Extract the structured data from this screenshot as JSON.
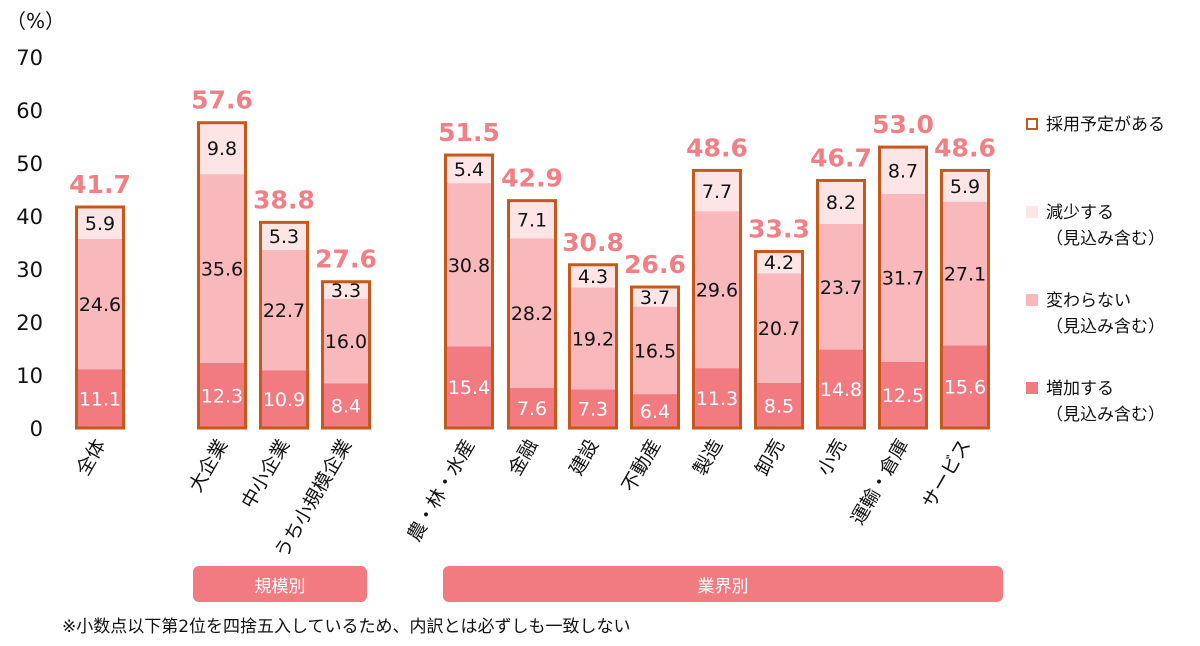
{
  "chart_data": {
    "type": "bar",
    "stacked": true,
    "unit_label": "（%）",
    "ylim": [
      0,
      70
    ],
    "yticks": [
      "0",
      "10",
      "20",
      "30",
      "40",
      "50",
      "60",
      "70"
    ],
    "categories": [
      "全体",
      "大企業",
      "中小企業",
      "うち小規模企業",
      "農・林・水産",
      "金融",
      "建設",
      "不動産",
      "製造",
      "卸売",
      "小売",
      "運輸・倉庫",
      "サービス"
    ],
    "series": [
      {
        "name": "増加する",
        "color": "#f27b82",
        "label_color": "#ffffff",
        "values": [
          11.1,
          12.3,
          10.9,
          8.4,
          15.4,
          7.6,
          7.3,
          6.4,
          11.3,
          8.5,
          14.8,
          12.5,
          15.6
        ],
        "labels": [
          "11.1",
          "12.3",
          "10.9",
          "8.4",
          "15.4",
          "7.6",
          "7.3",
          "6.4",
          "11.3",
          "8.5",
          "14.8",
          "12.5",
          "15.6"
        ]
      },
      {
        "name": "変わらない",
        "color": "#f8b8bc",
        "label_color": "#111111",
        "values": [
          24.6,
          35.6,
          22.7,
          16.0,
          30.8,
          28.2,
          19.2,
          16.5,
          29.6,
          20.7,
          23.7,
          31.7,
          27.1
        ],
        "labels": [
          "24.6",
          "35.6",
          "22.7",
          "16.0",
          "30.8",
          "28.2",
          "19.2",
          "16.5",
          "29.6",
          "20.7",
          "23.7",
          "31.7",
          "27.1"
        ]
      },
      {
        "name": "減少する",
        "color": "#fde5e6",
        "label_color": "#111111",
        "values": [
          5.9,
          9.8,
          5.3,
          3.3,
          5.4,
          7.1,
          4.3,
          3.7,
          7.7,
          4.2,
          8.2,
          8.7,
          5.9
        ],
        "labels": [
          "5.9",
          "9.8",
          "5.3",
          "3.3",
          "5.4",
          "7.1",
          "4.3",
          "3.7",
          "7.7",
          "4.2",
          "8.2",
          "8.7",
          "5.9"
        ]
      }
    ],
    "totals": {
      "name": "採用予定がある",
      "color": "#c8581a",
      "values": [
        41.7,
        57.6,
        38.8,
        27.6,
        51.5,
        42.9,
        30.8,
        26.6,
        48.6,
        33.3,
        46.7,
        53.0,
        48.6
      ],
      "labels": [
        "41.7",
        "57.6",
        "38.8",
        "27.6",
        "51.5",
        "42.9",
        "30.8",
        "26.6",
        "48.6",
        "33.3",
        "46.7",
        "53.0",
        "48.6"
      ]
    },
    "total_label_color": "#f07f86",
    "groups": [
      {
        "label": "規模別",
        "members": [
          "大企業",
          "中小企業",
          "うち小規模企業"
        ]
      },
      {
        "label": "業界別",
        "members": [
          "農・林・水産",
          "金融",
          "建設",
          "不動産",
          "製造",
          "卸売",
          "小売",
          "運輸・倉庫",
          "サービス"
        ]
      }
    ],
    "legend": {
      "position": "right",
      "items": [
        {
          "label": "採用予定がある",
          "sub": ""
        },
        {
          "label": "減少する",
          "sub": "（見込み含む）"
        },
        {
          "label": "変わらない",
          "sub": "（見込み含む）"
        },
        {
          "label": "増加する",
          "sub": "（見込み含む）"
        }
      ]
    }
  },
  "footnote": "※小数点以下第2位を四捨五入しているため、内訳とは必ずしも一致しない"
}
